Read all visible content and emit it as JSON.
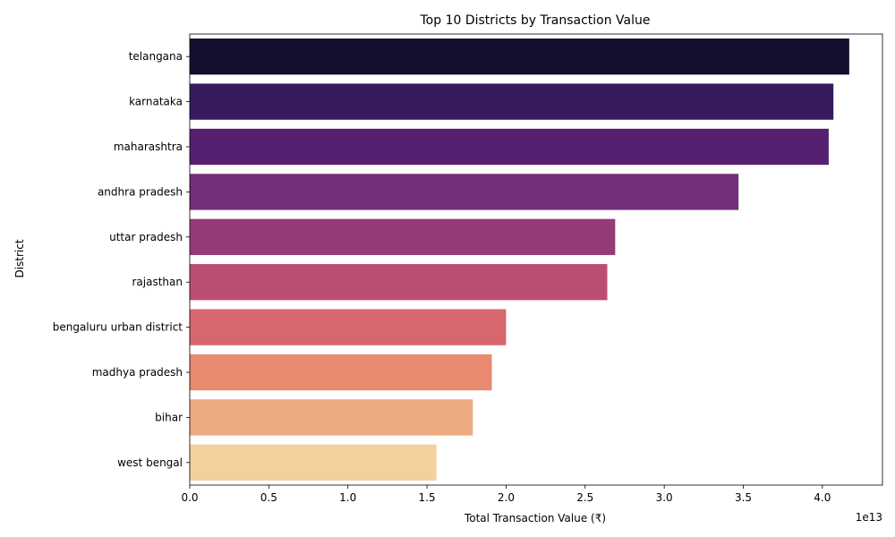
{
  "chart_data": {
    "type": "bar",
    "orientation": "horizontal",
    "title": "Top 10 Districts by Transaction Value",
    "xlabel": "Total Transaction Value (₹)",
    "ylabel": "District",
    "x_offset_label": "1e13",
    "x_scale": 10000000000000,
    "xlim": [
      0,
      43800000000000
    ],
    "x_ticks": [
      0,
      0.5,
      1.0,
      1.5,
      2.0,
      2.5,
      3.0,
      3.5,
      4.0
    ],
    "x_tick_labels": [
      "0.0",
      "0.5",
      "1.0",
      "1.5",
      "2.0",
      "2.5",
      "3.0",
      "3.5",
      "4.0"
    ],
    "grid": false,
    "legend": "none",
    "categories": [
      "telangana",
      "karnataka",
      "maharashtra",
      "andhra pradesh",
      "uttar pradesh",
      "rajasthan",
      "bengaluru urban district",
      "madhya pradesh",
      "bihar",
      "west bengal"
    ],
    "values": [
      41700000000000,
      40700000000000,
      40400000000000,
      34700000000000,
      26900000000000,
      26400000000000,
      20000000000000,
      19100000000000,
      17900000000000,
      15600000000000
    ],
    "colors": [
      "#140f2f",
      "#361c5c",
      "#55206f",
      "#732f78",
      "#953c77",
      "#ba4f73",
      "#d8666f",
      "#e78a70",
      "#eeaa80",
      "#f3d09e"
    ]
  }
}
